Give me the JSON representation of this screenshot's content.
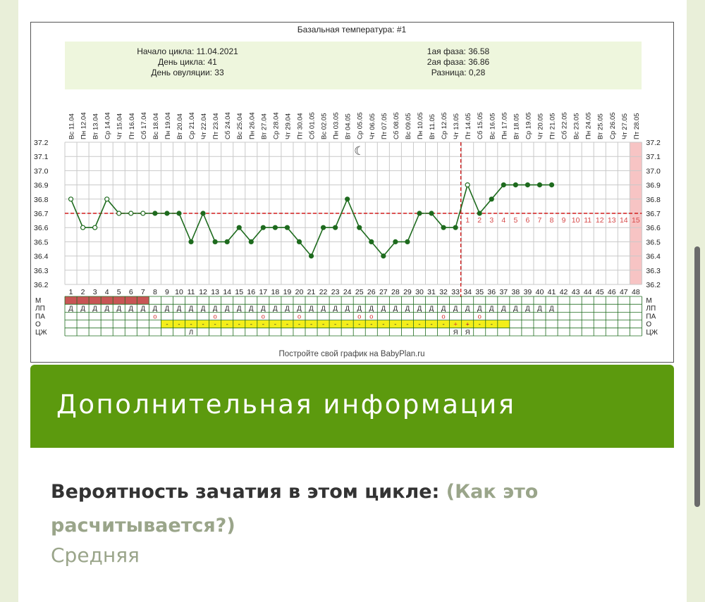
{
  "chart": {
    "title": "Базальная температура: #1",
    "info": {
      "cycle_start": "Начало цикла: 11.04.2021",
      "cycle_day": "День цикла: 41",
      "ovulation_day": "День овуляции: 33",
      "phase1": "1ая фаза: 36.58",
      "phase2": "2ая фаза: 36.86",
      "difference": "Разница: 0,28"
    },
    "footer": "Постройте свой график на BabyPlan.ru",
    "row_labels": [
      "М",
      "ЛП",
      "ПА",
      "О",
      "ЦЖ"
    ],
    "dates": [
      "Вс 11.04",
      "Пн 12.04",
      "Вт 13.04",
      "Ср 14.04",
      "Чт 15.04",
      "Пт 16.04",
      "Сб 17.04",
      "Вс 18.04",
      "Пн 19.04",
      "Вт 20.04",
      "Ср 21.04",
      "Чт 22.04",
      "Пт 23.04",
      "Сб 24.04",
      "Вс 25.04",
      "Пн 26.04",
      "Вт 27.04",
      "Ср 28.04",
      "Чт 29.04",
      "Пт 30.04",
      "Сб 01.05",
      "Вс 02.05",
      "Пн 03.05",
      "Вт 04.05",
      "Ср 05.05",
      "Чт 06.05",
      "Пт 07.05",
      "Сб 08.05",
      "Вс 09.05",
      "Пн 10.05",
      "Вт 11.05",
      "Ср 12.05",
      "Чт 13.05",
      "Пт 14.05",
      "Сб 15.05",
      "Вс 16.05",
      "Пн 17.05",
      "Вт 18.05",
      "Ср 19.05",
      "Чт 20.05",
      "Пт 21.05",
      "Сб 22.05",
      "Вс 23.05",
      "Пн 24.05",
      "Вт 25.05",
      "Ср 26.05",
      "Чт 27.05",
      "Пт 28.05"
    ],
    "day_numbers": [
      "1",
      "2",
      "3",
      "4",
      "5",
      "6",
      "7",
      "8",
      "9",
      "10",
      "11",
      "12",
      "13",
      "14",
      "15",
      "16",
      "17",
      "18",
      "19",
      "20",
      "21",
      "22",
      "23",
      "24",
      "25",
      "26",
      "27",
      "28",
      "29",
      "30",
      "31",
      "32",
      "33",
      "34",
      "35",
      "36",
      "37",
      "38",
      "39",
      "40",
      "41",
      "42",
      "43",
      "44",
      "45",
      "46",
      "47",
      "48"
    ],
    "y_ticks": [
      "37.2",
      "37.1",
      "37.0",
      "36.9",
      "36.8",
      "36.7",
      "36.6",
      "36.5",
      "36.4",
      "36.3",
      "36.2"
    ],
    "luteal_day_numbers": [
      "1",
      "2",
      "3",
      "4",
      "5",
      "6",
      "7",
      "8",
      "9",
      "10",
      "11",
      "12",
      "13",
      "14",
      "15"
    ],
    "moon_symbol": "☾",
    "lp_mark": "Д",
    "pa_mark": "о",
    "o_dash": "-",
    "o_plus": "+",
    "cz_l": "Л",
    "cz_ya": "Я",
    "colors": {
      "line": "#1e6b1e",
      "coverline": "#d21c1c",
      "info_bg": "#eef6dd",
      "menses": "#c85555",
      "highlight_col": "#f7c4c4",
      "ovulation_cells": "#f4ee1a"
    }
  },
  "chart_data": {
    "type": "line",
    "title": "Базальная температура: #1",
    "x": [
      1,
      2,
      3,
      4,
      5,
      6,
      7,
      8,
      9,
      10,
      11,
      12,
      13,
      14,
      15,
      16,
      17,
      18,
      19,
      20,
      21,
      22,
      23,
      24,
      25,
      26,
      27,
      28,
      29,
      30,
      31,
      32,
      33,
      34,
      35,
      36,
      37,
      38,
      39,
      40,
      41
    ],
    "series": [
      {
        "values": [
          36.8,
          36.6,
          36.6,
          36.8,
          36.7,
          36.7,
          36.7,
          36.7,
          36.7,
          36.7,
          36.5,
          36.7,
          36.5,
          36.5,
          36.6,
          36.5,
          36.6,
          36.6,
          36.6,
          36.5,
          36.4,
          36.6,
          36.6,
          36.8,
          36.6,
          36.5,
          36.4,
          36.5,
          36.5,
          36.7,
          36.7,
          36.6,
          36.6,
          36.9,
          36.7,
          36.8,
          36.9,
          36.9,
          36.9,
          36.9,
          36.9
        ]
      }
    ],
    "hollow_points": [
      1,
      2,
      3,
      4,
      5,
      6,
      7,
      34
    ],
    "coverline": 36.7,
    "ovulation_day": 33,
    "moon_day": 25,
    "ylim": [
      36.2,
      37.2
    ],
    "xlim": [
      1,
      48
    ],
    "grid": true,
    "menses_days": [
      1,
      2,
      3,
      4,
      5,
      6,
      7
    ],
    "lp_days": [
      1,
      2,
      3,
      4,
      5,
      6,
      7,
      8,
      9,
      10,
      11,
      12,
      13,
      14,
      15,
      16,
      17,
      18,
      19,
      20,
      21,
      22,
      23,
      24,
      25,
      26,
      27,
      28,
      29,
      30,
      31,
      32,
      33,
      34,
      35,
      36,
      37,
      38,
      39,
      40,
      41
    ],
    "pa_days": [
      8,
      13,
      17,
      20,
      25,
      26,
      32,
      35
    ],
    "o_dash_days": [
      9,
      10,
      11,
      12,
      13,
      14,
      15,
      16,
      17,
      18,
      19,
      20,
      21,
      22,
      23,
      24,
      25,
      26,
      27,
      28,
      29,
      30,
      31,
      32,
      34,
      35,
      36
    ],
    "o_plus_days": [
      33,
      34
    ],
    "o_yellow_days": [
      9,
      10,
      11,
      12,
      13,
      14,
      15,
      16,
      17,
      18,
      19,
      20,
      21,
      22,
      23,
      24,
      25,
      26,
      27,
      28,
      29,
      30,
      31,
      32,
      33,
      34,
      35,
      36,
      37
    ],
    "cz_l_days": [
      11
    ],
    "cz_ya_days": [
      33,
      34
    ],
    "highlight_day": 48
  },
  "section": {
    "title": "Дополнительная информация"
  },
  "probability": {
    "label": "Вероятность зачатия в этом цикле: ",
    "link": "(Как это расчитывается?)",
    "value": "Средняя"
  }
}
